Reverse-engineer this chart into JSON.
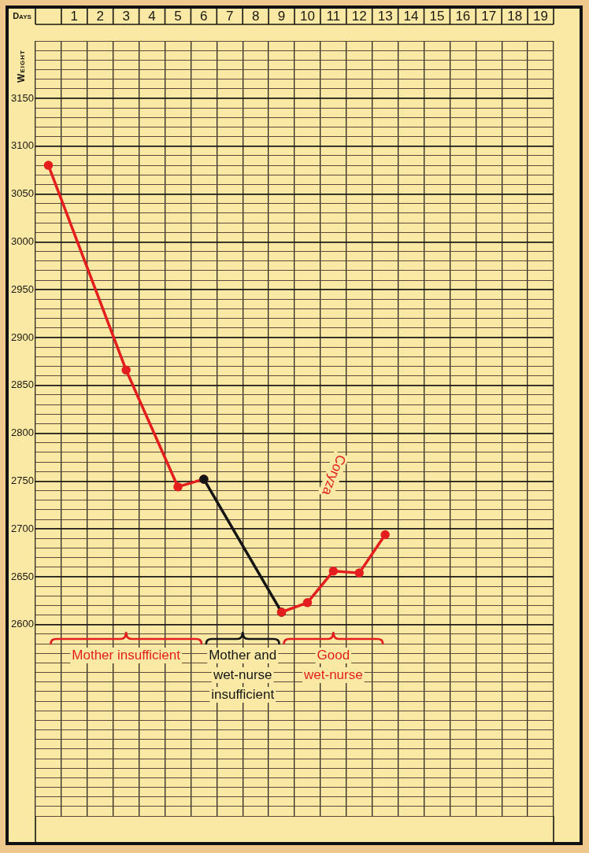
{
  "chart_data": {
    "type": "line",
    "xlabel": "Days",
    "ylabel": "Weight",
    "xlim": [
      -0.5,
      19.5
    ],
    "xticks": [
      {
        "value": -0.5,
        "label": null
      },
      {
        "value": 0.5,
        "label": null
      },
      1,
      {
        "value": 1.5,
        "label": null
      },
      2,
      {
        "value": 2.5,
        "label": null
      },
      3,
      {
        "value": 3.5,
        "label": null
      },
      4,
      {
        "value": 4.5,
        "label": null
      },
      5,
      {
        "value": 5.5,
        "label": null
      },
      6,
      {
        "value": 6.5,
        "label": null
      },
      7,
      {
        "value": 7.5,
        "label": null
      },
      8,
      {
        "value": 8.5,
        "label": null
      },
      9,
      {
        "value": 9.5,
        "label": null
      },
      10,
      {
        "value": 10.5,
        "label": null
      },
      11,
      {
        "value": 11.5,
        "label": null
      },
      12,
      {
        "value": 12.5,
        "label": null
      },
      13,
      {
        "value": 13.5,
        "label": null
      },
      14,
      {
        "value": 14.5,
        "label": null
      },
      15,
      {
        "value": 15.5,
        "label": null
      },
      16,
      {
        "value": 16.5,
        "label": null
      },
      17,
      {
        "value": 17.5,
        "label": null
      },
      18,
      {
        "value": 18.5,
        "label": null
      },
      19,
      {
        "value": 19.5,
        "label": null
      }
    ],
    "ylim": [
      2400,
      3210
    ],
    "yticks": [
      {
        "value": 2400,
        "label": null
      },
      {
        "value": 2410,
        "label": null
      },
      {
        "value": 2420,
        "label": null
      },
      {
        "value": 2430,
        "label": null
      },
      {
        "value": 2440,
        "label": null
      },
      {
        "value": 2450,
        "label": null
      },
      {
        "value": 2460,
        "label": null
      },
      {
        "value": 2470,
        "label": null
      },
      {
        "value": 2480,
        "label": null
      },
      {
        "value": 2490,
        "label": null
      },
      {
        "value": 2500,
        "label": null
      },
      {
        "value": 2510,
        "label": null
      },
      {
        "value": 2520,
        "label": null
      },
      {
        "value": 2530,
        "label": null
      },
      {
        "value": 2540,
        "label": null
      },
      {
        "value": 2550,
        "label": null
      },
      {
        "value": 2560,
        "label": null
      },
      {
        "value": 2570,
        "label": null
      },
      {
        "value": 2580,
        "label": null
      },
      {
        "value": 2590,
        "label": null
      },
      2600,
      {
        "value": 2610,
        "label": null
      },
      {
        "value": 2620,
        "label": null
      },
      {
        "value": 2630,
        "label": null
      },
      {
        "value": 2640,
        "label": null
      },
      2650,
      {
        "value": 2660,
        "label": null
      },
      {
        "value": 2670,
        "label": null
      },
      {
        "value": 2680,
        "label": null
      },
      {
        "value": 2690,
        "label": null
      },
      2700,
      {
        "value": 2710,
        "label": null
      },
      {
        "value": 2720,
        "label": null
      },
      {
        "value": 2730,
        "label": null
      },
      {
        "value": 2740,
        "label": null
      },
      2750,
      {
        "value": 2760,
        "label": null
      },
      {
        "value": 2770,
        "label": null
      },
      {
        "value": 2780,
        "label": null
      },
      {
        "value": 2790,
        "label": null
      },
      2800,
      {
        "value": 2810,
        "label": null
      },
      {
        "value": 2820,
        "label": null
      },
      {
        "value": 2830,
        "label": null
      },
      {
        "value": 2840,
        "label": null
      },
      2850,
      {
        "value": 2860,
        "label": null
      },
      {
        "value": 2870,
        "label": null
      },
      {
        "value": 2880,
        "label": null
      },
      {
        "value": 2890,
        "label": null
      },
      2900,
      {
        "value": 2910,
        "label": null
      },
      {
        "value": 2920,
        "label": null
      },
      {
        "value": 2930,
        "label": null
      },
      {
        "value": 2940,
        "label": null
      },
      2950,
      {
        "value": 2960,
        "label": null
      },
      {
        "value": 2970,
        "label": null
      },
      {
        "value": 2980,
        "label": null
      },
      {
        "value": 2990,
        "label": null
      },
      3000,
      {
        "value": 3010,
        "label": null
      },
      {
        "value": 3020,
        "label": null
      },
      {
        "value": 3030,
        "label": null
      },
      {
        "value": 3040,
        "label": null
      },
      3050,
      {
        "value": 3060,
        "label": null
      },
      {
        "value": 3070,
        "label": null
      },
      {
        "value": 3080,
        "label": null
      },
      {
        "value": 3090,
        "label": null
      },
      3100,
      {
        "value": 3110,
        "label": null
      },
      {
        "value": 3120,
        "label": null
      },
      {
        "value": 3130,
        "label": null
      },
      {
        "value": 3140,
        "label": null
      },
      3150,
      {
        "value": 3160,
        "label": null
      },
      {
        "value": 3170,
        "label": null
      },
      {
        "value": 3180,
        "label": null
      },
      {
        "value": 3190,
        "label": null
      },
      {
        "value": 3200,
        "label": null
      },
      {
        "value": 3210,
        "label": null
      }
    ],
    "grid": true,
    "marker": "circle",
    "line_style": "solid",
    "series": [
      {
        "color": "#e41e1e",
        "x": [
          0,
          3,
          5,
          6
        ],
        "values": [
          3080,
          2866,
          2744,
          2752
        ]
      },
      {
        "color": "#151515",
        "x": [
          6,
          9
        ],
        "values": [
          2752,
          2613
        ]
      },
      {
        "color": "#e41e1e",
        "x": [
          9,
          10,
          11,
          12,
          13
        ],
        "values": [
          2613,
          2623,
          2656,
          2654,
          2694
        ]
      }
    ],
    "annotations": [
      "Mother insufficient",
      "Mother and wet-nurse insufficient",
      "Good wet-nurse",
      "Coryza"
    ]
  }
}
